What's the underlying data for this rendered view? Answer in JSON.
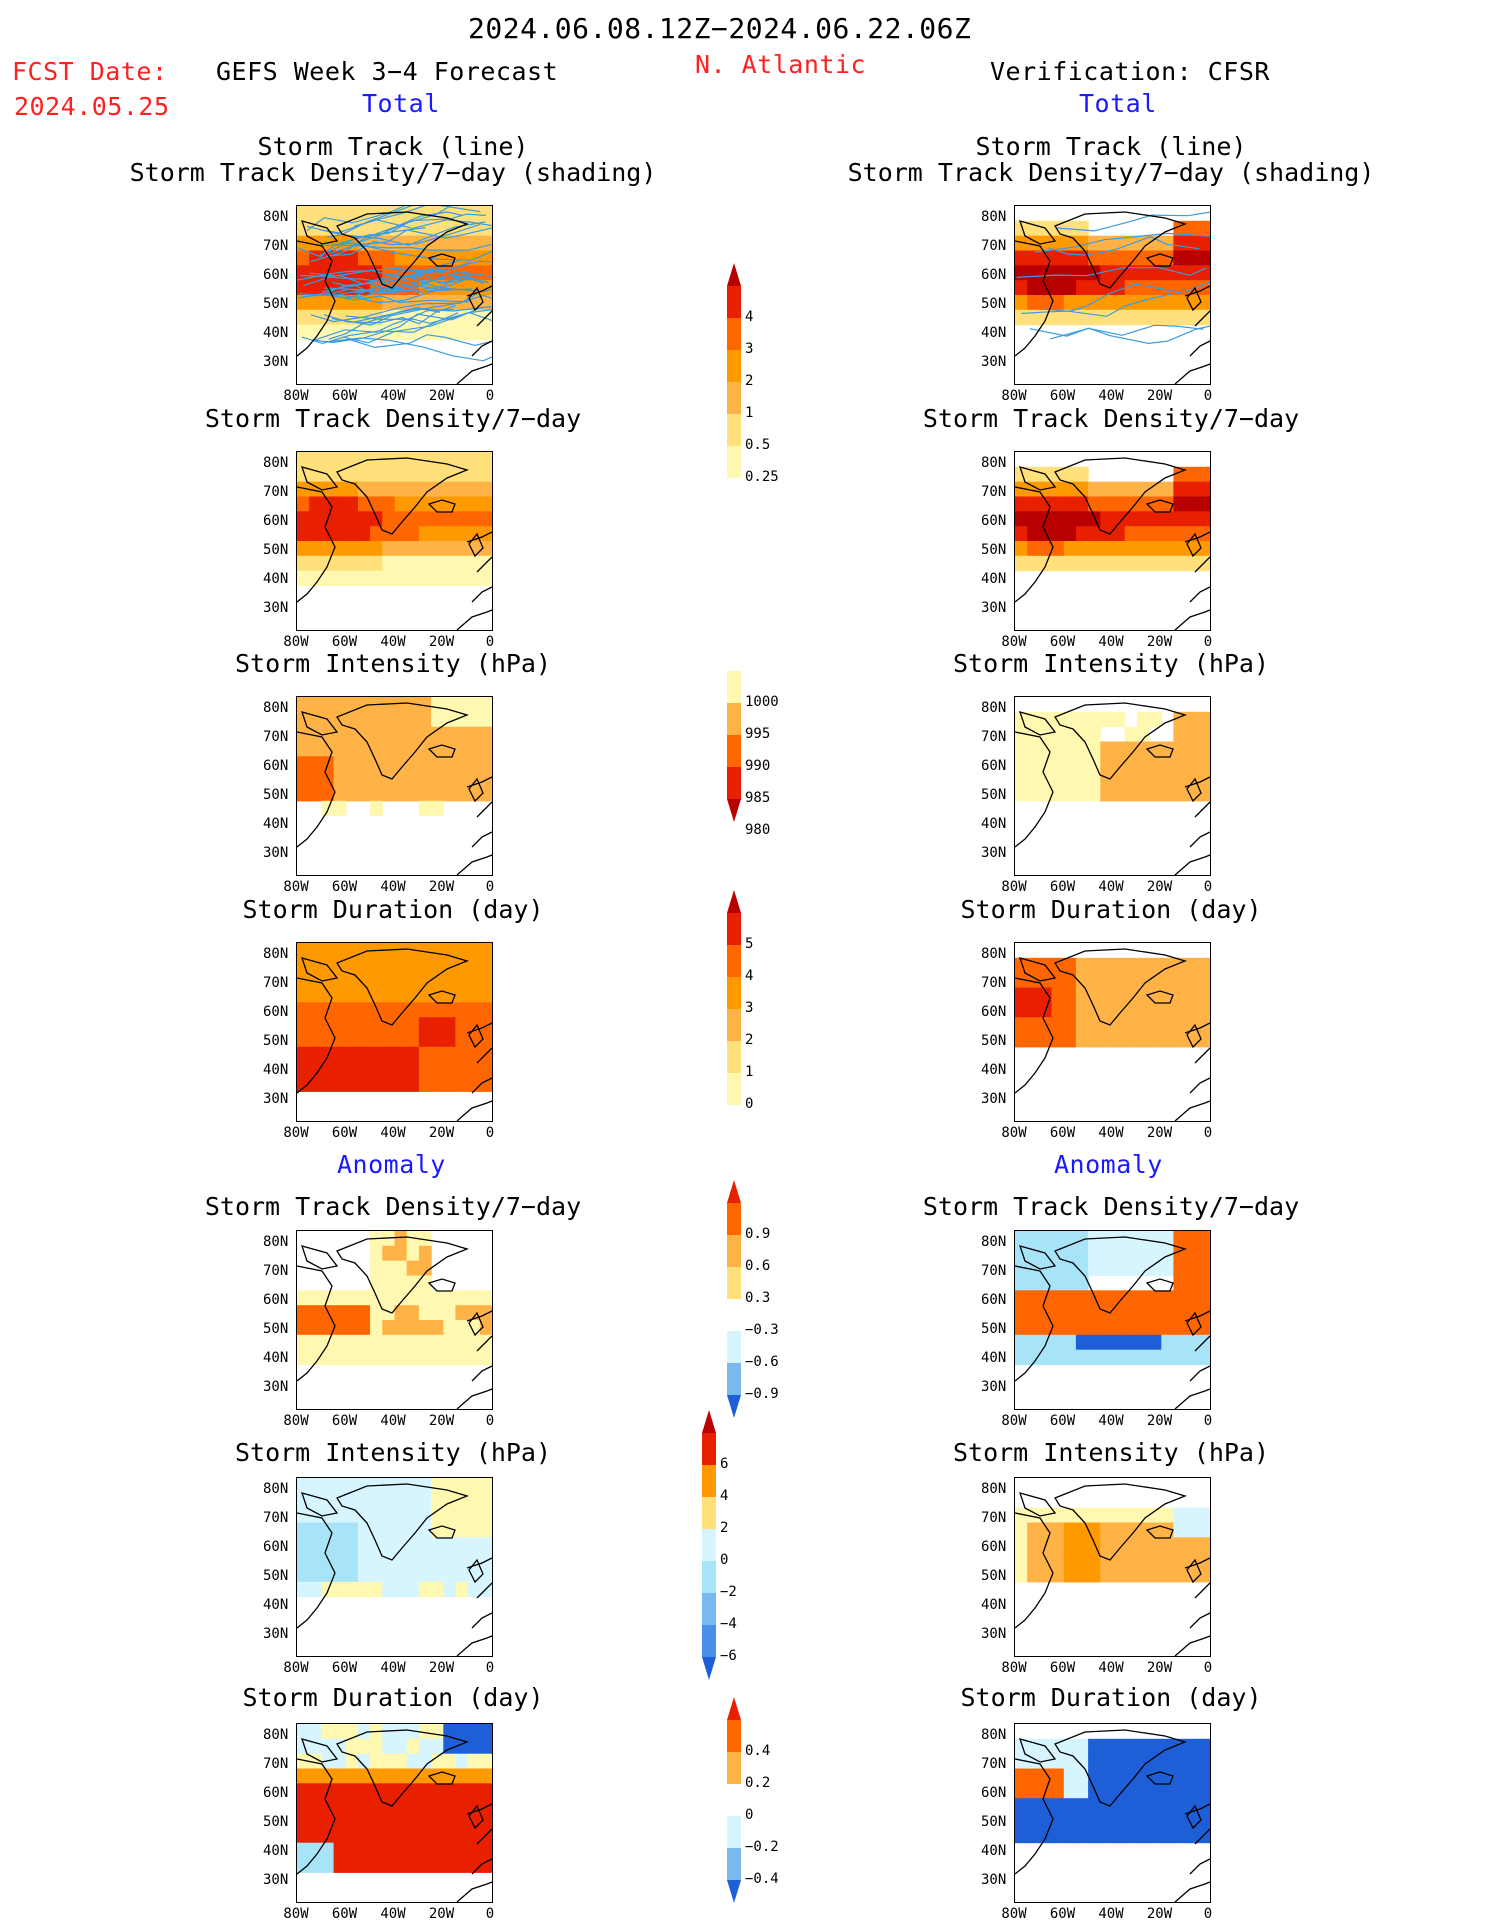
{
  "header": {
    "date_range": "2024.06.08.12Z−2024.06.22.06Z",
    "fcst_label": "FCST Date:",
    "fcst_date": "2024.05.25",
    "model_title": "GEFS Week 3−4 Forecast",
    "region": "N. Atlantic",
    "verification": "Verification: CFSR",
    "total_left": "Total",
    "total_right": "Total",
    "anomaly_left": "Anomaly",
    "anomaly_right": "Anomaly"
  },
  "panel_titles": {
    "track_line": "Storm Track (line)",
    "track_shading": "Storm Track Density/7−day (shading)",
    "density": "Storm Track Density/7−day",
    "intensity": "Storm Intensity (hPa)",
    "duration": "Storm Duration (day)"
  },
  "axes": {
    "lat_labels": [
      "80N",
      "70N",
      "60N",
      "50N",
      "40N",
      "30N"
    ],
    "lon_labels": [
      "80W",
      "60W",
      "40W",
      "20W",
      "0"
    ]
  },
  "colors": {
    "warm": [
      "#fff8b0",
      "#ffe07a",
      "#ffb347",
      "#ff9900",
      "#ff6600",
      "#e82000",
      "#b80000"
    ],
    "cool": [
      "#d6f5ff",
      "#a8e4f7",
      "#7ab8f0",
      "#4a90e8",
      "#1e5fd8"
    ],
    "track_line": "#3a9be0"
  },
  "colorbars": {
    "density_total": [
      "4",
      "3",
      "2",
      "1",
      "0.5",
      "0.25"
    ],
    "intensity_total": [
      "1000",
      "995",
      "990",
      "985",
      "980"
    ],
    "duration_total": [
      "5",
      "4",
      "3",
      "2",
      "1",
      "0"
    ],
    "density_anom": [
      "0.9",
      "0.6",
      "0.3",
      "−0.3",
      "−0.6",
      "−0.9"
    ],
    "intensity_anom": [
      "6",
      "4",
      "2",
      "0",
      "−2",
      "−4",
      "−6"
    ],
    "duration_anom": [
      "0.4",
      "0.2",
      "0",
      "−0.2",
      "−0.4"
    ]
  },
  "chart_data": [
    {
      "type": "heatmap",
      "panel": "forecast-total-track",
      "title": "Storm Track (line) / Storm Track Density/7−day (shading)",
      "pattern": "fc_density",
      "lines": true
    },
    {
      "type": "heatmap",
      "panel": "verif-total-track",
      "title": "Storm Track (line) / Storm Track Density/7−day (shading)",
      "pattern": "vf_density",
      "lines": true
    },
    {
      "type": "heatmap",
      "panel": "forecast-total-density",
      "title": "Storm Track Density/7−day",
      "pattern": "fc_density"
    },
    {
      "type": "heatmap",
      "panel": "verif-total-density",
      "title": "Storm Track Density/7−day",
      "pattern": "vf_density"
    },
    {
      "type": "heatmap",
      "panel": "forecast-total-intensity",
      "title": "Storm Intensity (hPa)",
      "pattern": "fc_intensity"
    },
    {
      "type": "heatmap",
      "panel": "verif-total-intensity",
      "title": "Storm Intensity (hPa)",
      "pattern": "vf_intensity"
    },
    {
      "type": "heatmap",
      "panel": "forecast-total-duration",
      "title": "Storm Duration (day)",
      "pattern": "fc_duration"
    },
    {
      "type": "heatmap",
      "panel": "verif-total-duration",
      "title": "Storm Duration (day)",
      "pattern": "vf_duration"
    },
    {
      "type": "heatmap",
      "panel": "forecast-anom-density",
      "title": "Storm Track Density/7−day",
      "pattern": "fc_adensity"
    },
    {
      "type": "heatmap",
      "panel": "verif-anom-density",
      "title": "Storm Track Density/7−day",
      "pattern": "vf_adensity"
    },
    {
      "type": "heatmap",
      "panel": "forecast-anom-intensity",
      "title": "Storm Intensity (hPa)",
      "pattern": "fc_aintensity"
    },
    {
      "type": "heatmap",
      "panel": "verif-anom-intensity",
      "title": "Storm Intensity (hPa)",
      "pattern": "vf_aintensity"
    },
    {
      "type": "heatmap",
      "panel": "forecast-anom-duration",
      "title": "Storm Duration (day)",
      "pattern": "fc_aduration"
    },
    {
      "type": "heatmap",
      "panel": "verif-anom-duration",
      "title": "Storm Duration (day)",
      "pattern": "vf_aduration"
    }
  ]
}
